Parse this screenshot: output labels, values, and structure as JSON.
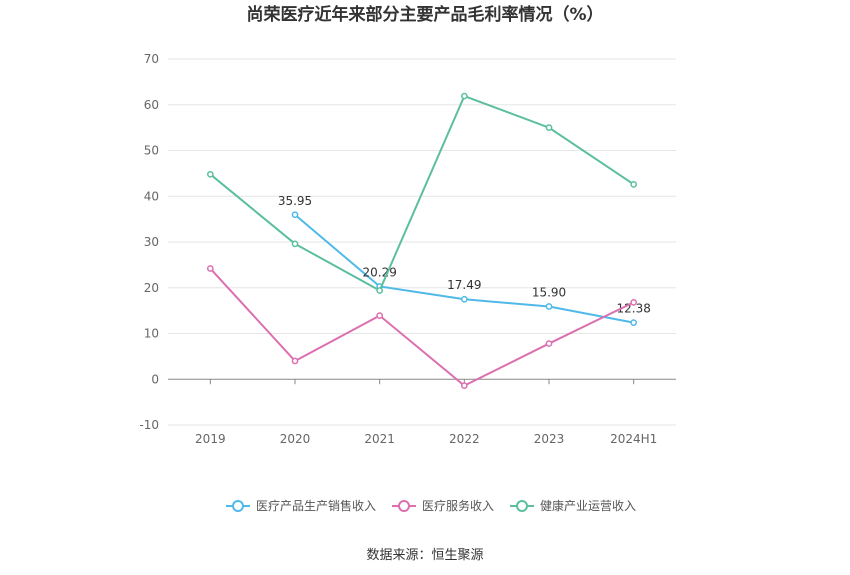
{
  "chart_data": {
    "type": "line",
    "title": "尚荣医疗近年来部分主要产品毛利率情况（%）",
    "categories": [
      "2019",
      "2020",
      "2021",
      "2022",
      "2023",
      "2024H1"
    ],
    "ylim": [
      -10,
      70
    ],
    "yticks": [
      "-10",
      "0",
      "10",
      "20",
      "30",
      "40",
      "50",
      "60",
      "70"
    ],
    "grid": true,
    "legend_position": "bottom",
    "series": [
      {
        "name": "医疗产品生产销售收入",
        "color": "#4fb9e9",
        "values": [
          null,
          35.95,
          20.29,
          17.49,
          15.9,
          12.38
        ],
        "labels": [
          "",
          "35.95",
          "20.29",
          "17.49",
          "15.90",
          "12.38"
        ]
      },
      {
        "name": "医疗服务收入",
        "color": "#dc6fb0",
        "values": [
          24.2,
          4.0,
          13.9,
          -1.4,
          7.8,
          16.8
        ]
      },
      {
        "name": "健康产业运营收入",
        "color": "#5bbf9f",
        "values": [
          44.8,
          29.6,
          19.4,
          61.9,
          55.0,
          42.6
        ]
      }
    ]
  },
  "source": "数据来源：恒生聚源"
}
